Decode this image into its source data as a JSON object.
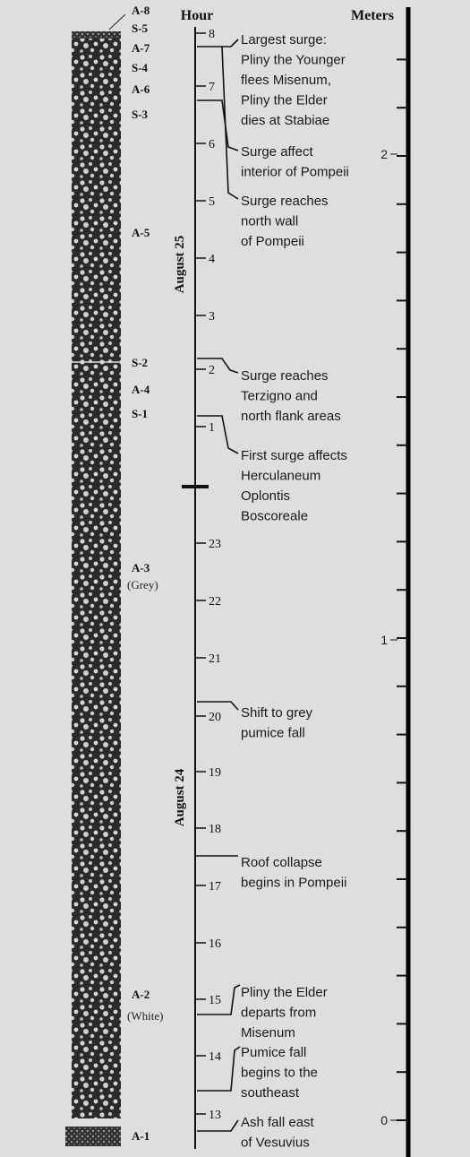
{
  "header": {
    "hour": "Hour",
    "meters": "Meters"
  },
  "layers": [
    {
      "label": "A-8"
    },
    {
      "label": "S-5"
    },
    {
      "label": "A-7"
    },
    {
      "label": "S-4"
    },
    {
      "label": "A-6"
    },
    {
      "label": "S-3"
    },
    {
      "label": "A-5"
    },
    {
      "label": "S-2"
    },
    {
      "label": "A-4"
    },
    {
      "label": "S-1"
    },
    {
      "label": "A-3",
      "note": "(Grey)"
    },
    {
      "label": "A-2",
      "note": "(White)"
    },
    {
      "label": "A-1"
    }
  ],
  "hours": [
    8,
    7,
    6,
    5,
    4,
    3,
    2,
    1,
    23,
    22,
    21,
    20,
    19,
    18,
    17,
    16,
    15,
    14,
    13
  ],
  "dates": [
    "August 25",
    "August 24"
  ],
  "meter_labels": [
    2,
    1,
    0
  ],
  "events": [
    {
      "lines": [
        "Largest surge:",
        "Pliny the Younger",
        "flees Misenum,",
        "Pliny the Elder",
        "dies at Stabiae"
      ]
    },
    {
      "lines": [
        "Surge affect",
        "interior of Pompeii"
      ]
    },
    {
      "lines": [
        "Surge reaches",
        "north wall",
        "of Pompeii"
      ]
    },
    {
      "lines": [
        "Surge reaches",
        "Terzigno and",
        "north flank areas"
      ]
    },
    {
      "lines": [
        "First surge affects",
        "Herculaneum",
        "Oplontis",
        "Boscoreale"
      ]
    },
    {
      "lines": [
        "Shift to grey",
        "pumice fall"
      ]
    },
    {
      "lines": [
        "Roof collapse",
        "begins in Pompeii"
      ]
    },
    {
      "lines": [
        "Pliny the Elder",
        "departs from",
        "Misenum"
      ]
    },
    {
      "lines": [
        "Pumice fall",
        "begins to the",
        "southeast"
      ]
    },
    {
      "lines": [
        "Ash fall east",
        "of Vesuvius"
      ]
    }
  ]
}
